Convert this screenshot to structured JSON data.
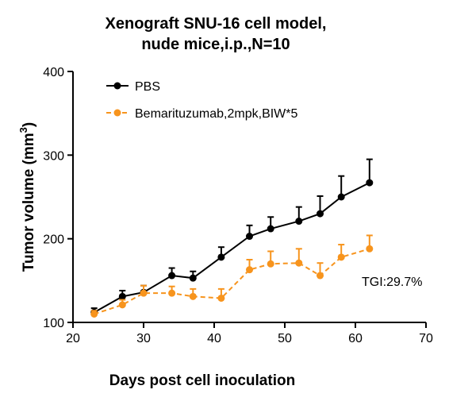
{
  "chart_data": {
    "type": "line",
    "title_line1": "Xenograft SNU-16 cell model,",
    "title_line2": "nude mice,i.p.,N=10",
    "xlabel": "Days post cell inoculation",
    "ylabel": "Tumor volume (mm",
    "ylabel_sup": "3",
    "ylabel_end": ")",
    "xlim": [
      20,
      70
    ],
    "ylim": [
      100,
      400
    ],
    "xticks": [
      20,
      30,
      40,
      50,
      60,
      70
    ],
    "yticks": [
      100,
      200,
      300,
      400
    ],
    "grid": false,
    "legend_position": "top-left",
    "annotation": "TGI:29.7%",
    "x": [
      23,
      27,
      30,
      34,
      37,
      41,
      45,
      48,
      52,
      55,
      58,
      62
    ],
    "series": [
      {
        "name": "PBS",
        "color": "#000000",
        "line_style": "solid",
        "values": [
          112,
          131,
          136,
          156,
          153,
          178,
          203,
          212,
          221,
          230,
          250,
          267
        ],
        "error": [
          5,
          7,
          8,
          9,
          8,
          12,
          13,
          14,
          17,
          21,
          25,
          28
        ]
      },
      {
        "name": "Bemarituzumab,2mpk,BIW*5",
        "color": "#f7941d",
        "line_style": "dashed",
        "values": [
          110,
          121,
          135,
          135,
          131,
          129,
          163,
          170,
          171,
          156,
          178,
          188
        ],
        "error": [
          4,
          6,
          9,
          8,
          9,
          11,
          12,
          15,
          17,
          15,
          15,
          16
        ]
      }
    ]
  }
}
